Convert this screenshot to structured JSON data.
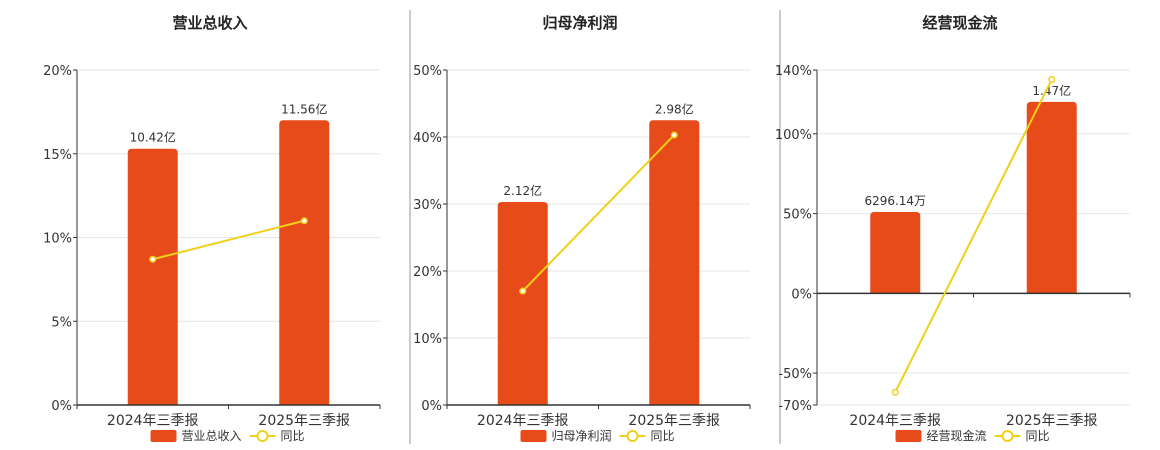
{
  "theme": {
    "bar_color": "#e84b1a",
    "line_color": "#f0d018",
    "grid_color": "#e6e6e6",
    "axis_color": "#333333",
    "divider_color": "#999999"
  },
  "chart_data": [
    {
      "type": "bar",
      "title": "营业总收入",
      "categories": [
        "2024年三季报",
        "2025年三季报"
      ],
      "series": [
        {
          "name": "营业总收入",
          "type": "bar",
          "axis": "left",
          "values": [
            15.3,
            17.0
          ],
          "labels": [
            "10.42亿",
            "11.56亿"
          ]
        },
        {
          "name": "同比",
          "type": "line",
          "axis": "left",
          "values": [
            8.7,
            11.0
          ]
        }
      ],
      "ylim": [
        0,
        20
      ],
      "yticks": [
        "0%",
        "5%",
        "10%",
        "15%",
        "20%"
      ],
      "ytick_values": [
        0,
        5,
        10,
        15,
        20
      ],
      "grid": true,
      "legend": "bottom"
    },
    {
      "type": "bar",
      "title": "归母净利润",
      "categories": [
        "2024年三季报",
        "2025年三季报"
      ],
      "series": [
        {
          "name": "归母净利润",
          "type": "bar",
          "axis": "left",
          "values": [
            30.3,
            42.5
          ],
          "labels": [
            "2.12亿",
            "2.98亿"
          ]
        },
        {
          "name": "同比",
          "type": "line",
          "axis": "left",
          "values": [
            17.0,
            40.3
          ]
        }
      ],
      "ylim": [
        0,
        50
      ],
      "yticks": [
        "0%",
        "10%",
        "20%",
        "30%",
        "40%",
        "50%"
      ],
      "ytick_values": [
        0,
        10,
        20,
        30,
        40,
        50
      ],
      "grid": true,
      "legend": "bottom"
    },
    {
      "type": "bar",
      "title": "经营现金流",
      "categories": [
        "2024年三季报",
        "2025年三季报"
      ],
      "series": [
        {
          "name": "经营现金流",
          "type": "bar",
          "axis": "left",
          "values": [
            51,
            120
          ],
          "labels": [
            "6296.14万",
            "1.47亿"
          ]
        },
        {
          "name": "同比",
          "type": "line",
          "axis": "left",
          "values": [
            -62,
            134
          ]
        }
      ],
      "ylim": [
        -70,
        140
      ],
      "yticks": [
        "-70%",
        "-50%",
        "0%",
        "50%",
        "100%",
        "140%"
      ],
      "ytick_values": [
        -70,
        -50,
        0,
        50,
        100,
        140
      ],
      "grid": true,
      "legend": "bottom"
    }
  ]
}
